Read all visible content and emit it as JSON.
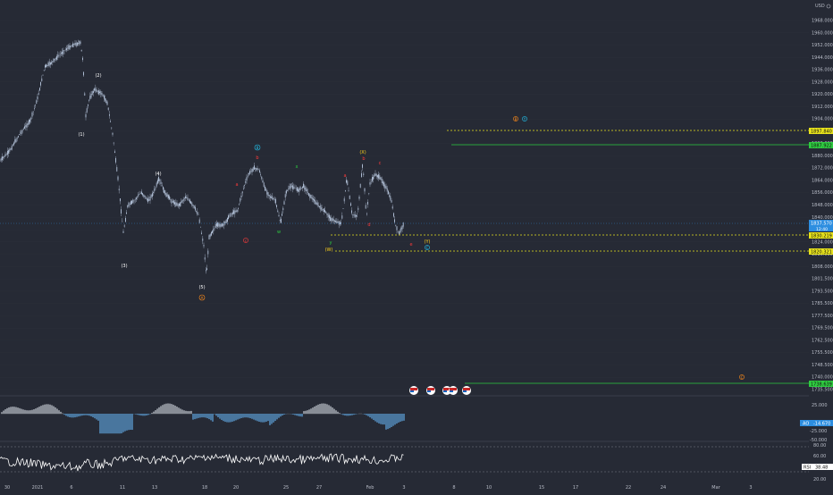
{
  "currency": "USD",
  "price_axis": {
    "ticks": [
      "1968.000",
      "1960.000",
      "1952.000",
      "1944.000",
      "1936.000",
      "1928.000",
      "1920.000",
      "1912.000",
      "1904.000",
      "1896.000",
      "1888.000",
      "1880.000",
      "1872.000",
      "1864.000",
      "1856.000",
      "1848.000",
      "1840.000",
      "1832.000",
      "1824.000",
      "1816.000",
      "1808.000",
      "1801.500",
      "1793.500",
      "1785.500",
      "1777.500",
      "1769.500",
      "1762.500",
      "1755.500",
      "1748.500",
      "1740.000",
      "1735.500"
    ],
    "labels": [
      {
        "text": "1897.840",
        "color": "#e7e21c"
      },
      {
        "text": "1887.922",
        "color": "#2ecc40"
      },
      {
        "text": "1837.570",
        "color": "#2d8ee0"
      },
      {
        "text": "12:40",
        "color": "#2d8ee0"
      },
      {
        "text": "1830.219",
        "color": "#e7e21c"
      },
      {
        "text": "1820.321",
        "color": "#e7e21c"
      },
      {
        "text": "1738.639",
        "color": "#2ecc40"
      }
    ]
  },
  "time_axis": {
    "labels": [
      "30",
      "2021",
      "6",
      "11",
      "13",
      "18",
      "20",
      "25",
      "27",
      "Feb",
      "3",
      "8",
      "10",
      "15",
      "17",
      "22",
      "24",
      "Mar",
      "3"
    ]
  },
  "waves": [
    {
      "text": "(2)",
      "color": "#ffffff"
    },
    {
      "text": "(1)",
      "color": "#ffffff"
    },
    {
      "text": "(4)",
      "color": "#ffffff"
    },
    {
      "text": "(3)",
      "color": "#ffffff"
    },
    {
      "text": "(5)",
      "color": "#ffffff"
    },
    {
      "text": "A",
      "color": "#ff8c1a"
    },
    {
      "text": "B",
      "color": "#22c3ee"
    },
    {
      "text": "b",
      "color": "#ff3b3b"
    },
    {
      "text": "a",
      "color": "#ff3b3b"
    },
    {
      "text": "c",
      "color": "#ff3b3b"
    },
    {
      "text": "x",
      "color": "#2ecc40"
    },
    {
      "text": "w",
      "color": "#2ecc40"
    },
    {
      "text": "(X)",
      "color": "#ffd21a"
    },
    {
      "text": "b",
      "color": "#ff3b3b"
    },
    {
      "text": "a",
      "color": "#ff3b3b"
    },
    {
      "text": "c",
      "color": "#ff3b3b"
    },
    {
      "text": "d",
      "color": "#ff3b3b"
    },
    {
      "text": "y",
      "color": "#2ecc40"
    },
    {
      "text": "(W)",
      "color": "#ffd21a"
    },
    {
      "text": "e",
      "color": "#ff3b3b"
    },
    {
      "text": "(Y)",
      "color": "#ffd21a"
    },
    {
      "text": "C",
      "color": "#22c3ee"
    },
    {
      "text": "B",
      "color": "#ff8c1a"
    },
    {
      "text": "Y",
      "color": "#22c3ee"
    },
    {
      "text": "C",
      "color": "#ff8c1a"
    }
  ],
  "ao": {
    "label": "AO",
    "value": "-14.670",
    "ticks": [
      "25.000",
      "-25.000",
      "-50.000"
    ]
  },
  "rsi": {
    "label": "RSI",
    "value": "38.48",
    "ticks": [
      "80.00",
      "60.00",
      "40.00",
      "20.00"
    ]
  },
  "colors": {
    "background": "#262a35",
    "candle": "#c5d6ee",
    "accent": "#2d8ee0",
    "ao_up": "#5a9ad0",
    "ao_mid": "#b7bcc4",
    "rsi_line": "#ffffff"
  }
}
